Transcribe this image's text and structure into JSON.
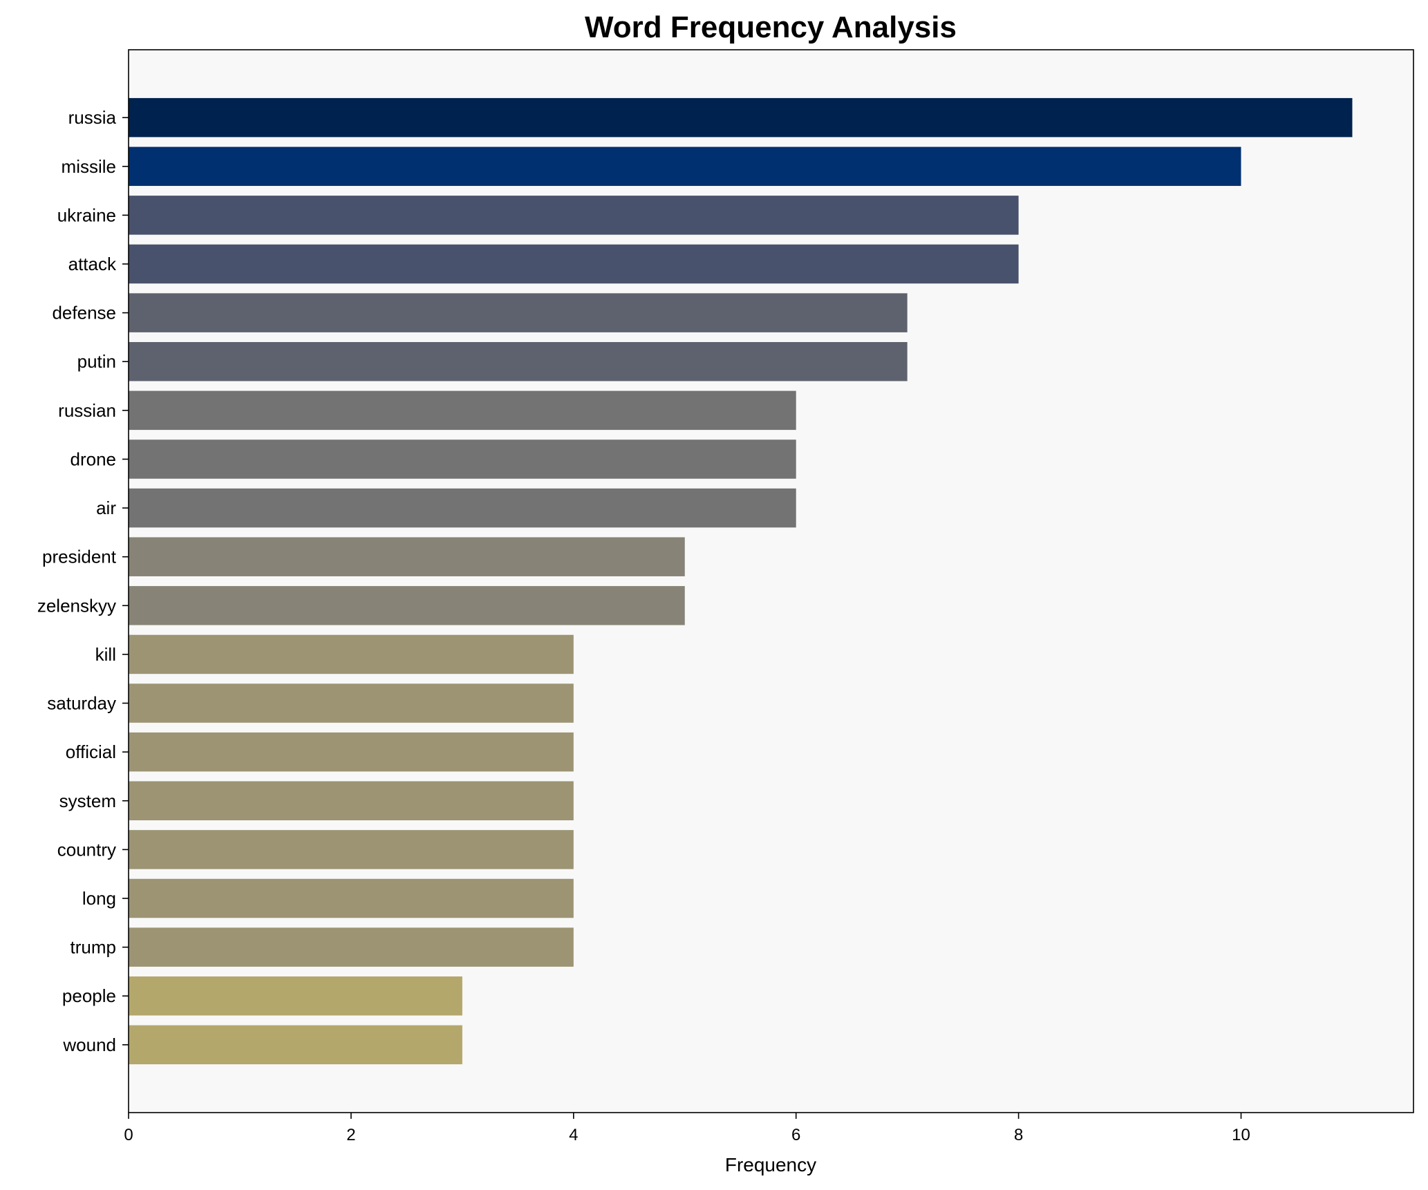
{
  "chart_data": {
    "type": "bar",
    "orientation": "horizontal",
    "title": "Word Frequency Analysis",
    "xlabel": "Frequency",
    "ylabel": "",
    "xlim": [
      0,
      11.55
    ],
    "xticks": [
      0,
      2,
      4,
      6,
      8,
      10
    ],
    "grid": false,
    "background": "#f8f8f8",
    "categories": [
      "russia",
      "missile",
      "ukraine",
      "attack",
      "defense",
      "putin",
      "russian",
      "drone",
      "air",
      "president",
      "zelenskyy",
      "kill",
      "saturday",
      "official",
      "system",
      "country",
      "long",
      "trump",
      "people",
      "wound"
    ],
    "values": [
      11,
      10,
      8,
      8,
      7,
      7,
      6,
      6,
      6,
      5,
      5,
      4,
      4,
      4,
      4,
      4,
      4,
      4,
      3,
      3
    ],
    "colors": [
      "#00224e",
      "#003070",
      "#48526c",
      "#48526c",
      "#5e626e",
      "#5e626e",
      "#737373",
      "#737373",
      "#737373",
      "#878477",
      "#878477",
      "#9c9473",
      "#9c9473",
      "#9c9473",
      "#9c9473",
      "#9c9473",
      "#9c9473",
      "#9c9473",
      "#b4a76c",
      "#b4a76c"
    ]
  }
}
